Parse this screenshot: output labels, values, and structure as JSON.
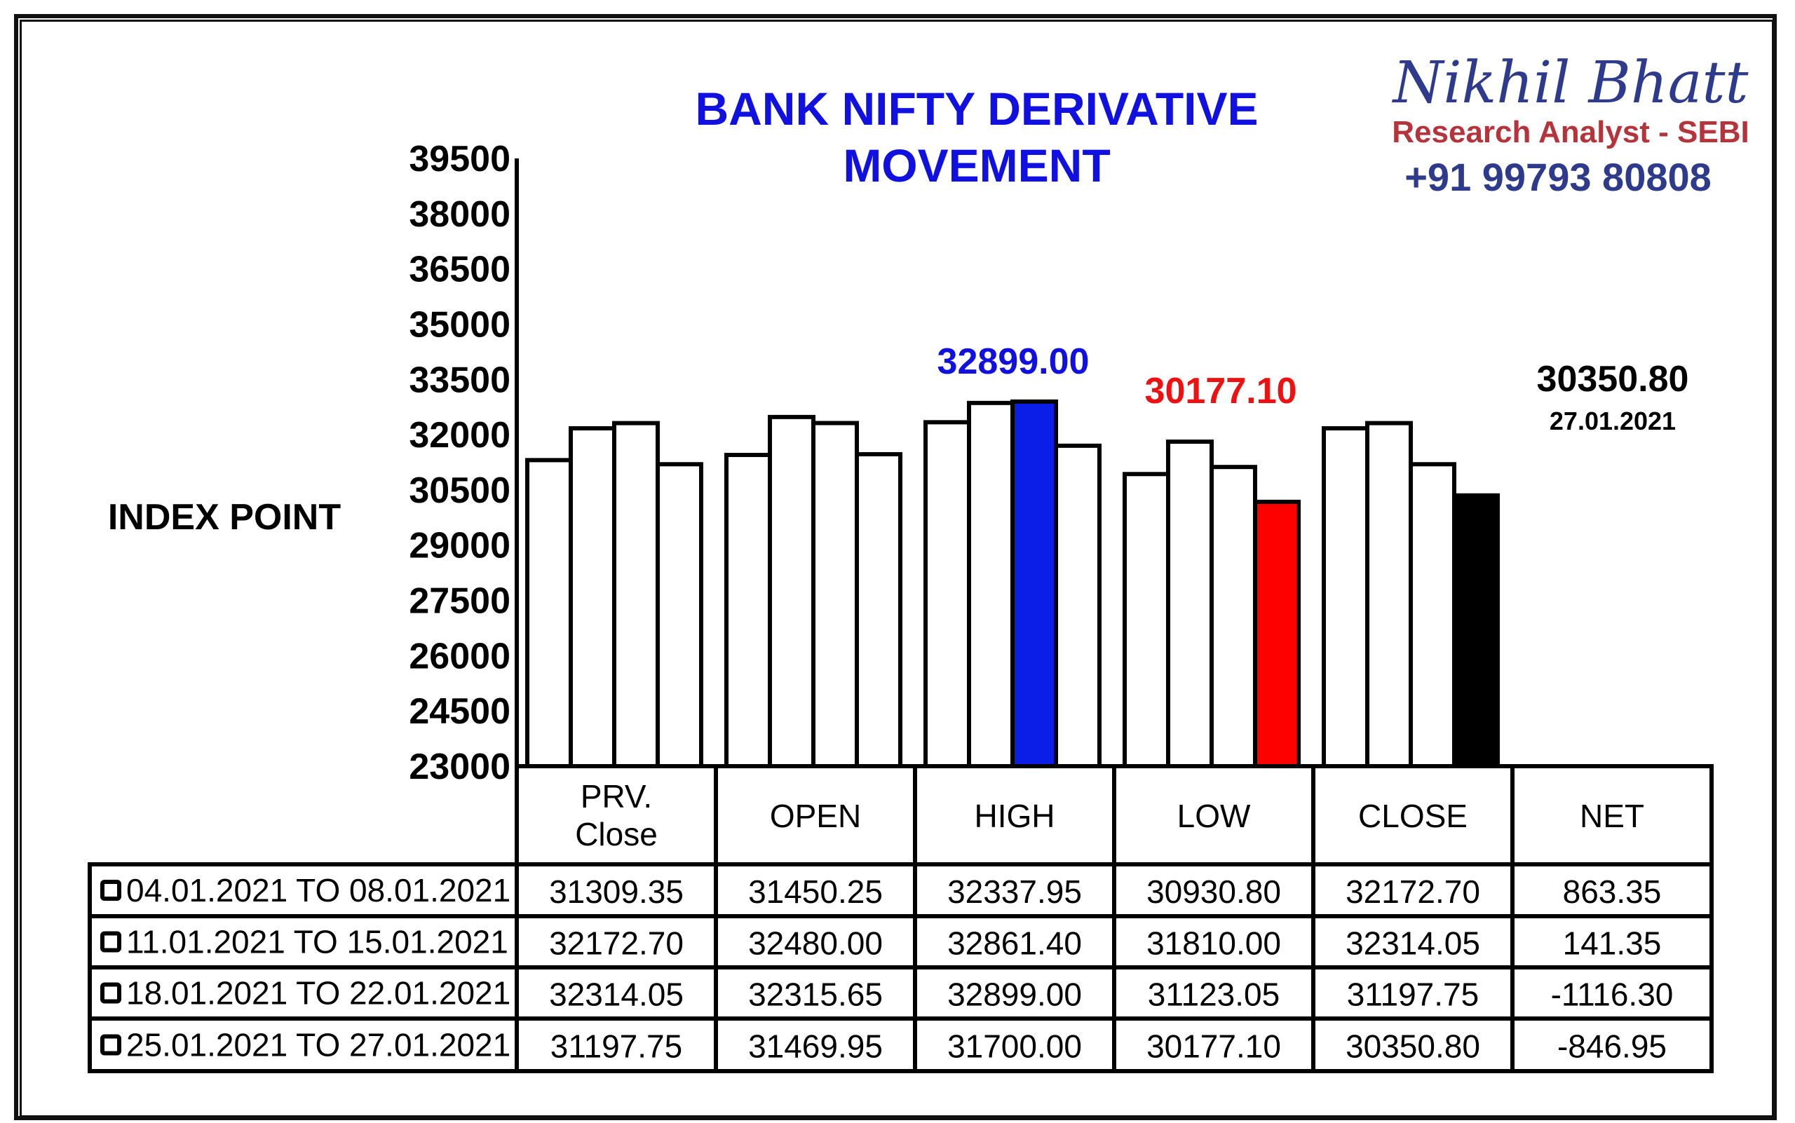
{
  "brand": {
    "name": "Nikhil Bhatt",
    "subtitle": "Research Analyst - SEBI",
    "phone": "+91 99793 80808",
    "name_color": "#2e3a8c",
    "subtitle_color": "#b5343c",
    "phone_color": "#2e3a8c"
  },
  "colors": {
    "title": "#1010e0",
    "high_bar": "#0a1ee8",
    "low_bar": "#ff0000",
    "net_bar": "#000000",
    "default_bar": "#ffffff"
  },
  "chart_data": {
    "type": "bar",
    "title_lines": [
      "BANK NIFTY DERIVATIVE",
      "MOVEMENT"
    ],
    "ylabel": "INDEX POINT",
    "ylim": [
      23000,
      39500
    ],
    "yticks": [
      39500,
      38000,
      36500,
      35000,
      33500,
      32000,
      30500,
      29000,
      27500,
      26000,
      24500,
      23000
    ],
    "categories": [
      "PRV. Close",
      "OPEN",
      "HIGH",
      "LOW",
      "CLOSE",
      "NET"
    ],
    "series": [
      {
        "name": "04.01.2021 TO 08.01.2021",
        "values": [
          31309.35,
          31450.25,
          32337.95,
          30930.8,
          32172.7,
          null
        ]
      },
      {
        "name": "11.01.2021 TO 15.01.2021",
        "values": [
          32172.7,
          32480.0,
          32861.4,
          31810.0,
          32314.05,
          null
        ]
      },
      {
        "name": "18.01.2021 TO 22.01.2021",
        "values": [
          32314.05,
          32315.65,
          32899.0,
          31123.05,
          31197.75,
          null
        ]
      },
      {
        "name": "25.01.2021 TO 27.01.2021",
        "values": [
          31197.75,
          31469.95,
          31700.0,
          30177.1,
          30350.8,
          null
        ]
      }
    ],
    "annotations": [
      {
        "category": "HIGH",
        "text": "32899.00",
        "color": "#1010e0"
      },
      {
        "category": "LOW",
        "text": "30177.10",
        "color": "#ee1111"
      },
      {
        "category": "NET",
        "text": "30350.80",
        "sub": "27.01.2021",
        "color": "#000000"
      }
    ],
    "table": {
      "headers": [
        "PRV. Close",
        "OPEN",
        "HIGH",
        "LOW",
        "CLOSE",
        "NET"
      ],
      "rows": [
        {
          "label": "04.01.2021 TO 08.01.2021",
          "cells": [
            "31309.35",
            "31450.25",
            "32337.95",
            "30930.80",
            "32172.70",
            "863.35"
          ]
        },
        {
          "label": "11.01.2021 TO 15.01.2021",
          "cells": [
            "32172.70",
            "32480.00",
            "32861.40",
            "31810.00",
            "32314.05",
            "141.35"
          ]
        },
        {
          "label": "18.01.2021 TO 22.01.2021",
          "cells": [
            "32314.05",
            "32315.65",
            "32899.00",
            "31123.05",
            "31197.75",
            "-1116.30"
          ]
        },
        {
          "label": "25.01.2021 TO 27.01.2021",
          "cells": [
            "31197.75",
            "31469.95",
            "31700.00",
            "30177.10",
            "30350.80",
            "-846.95"
          ]
        }
      ]
    }
  }
}
